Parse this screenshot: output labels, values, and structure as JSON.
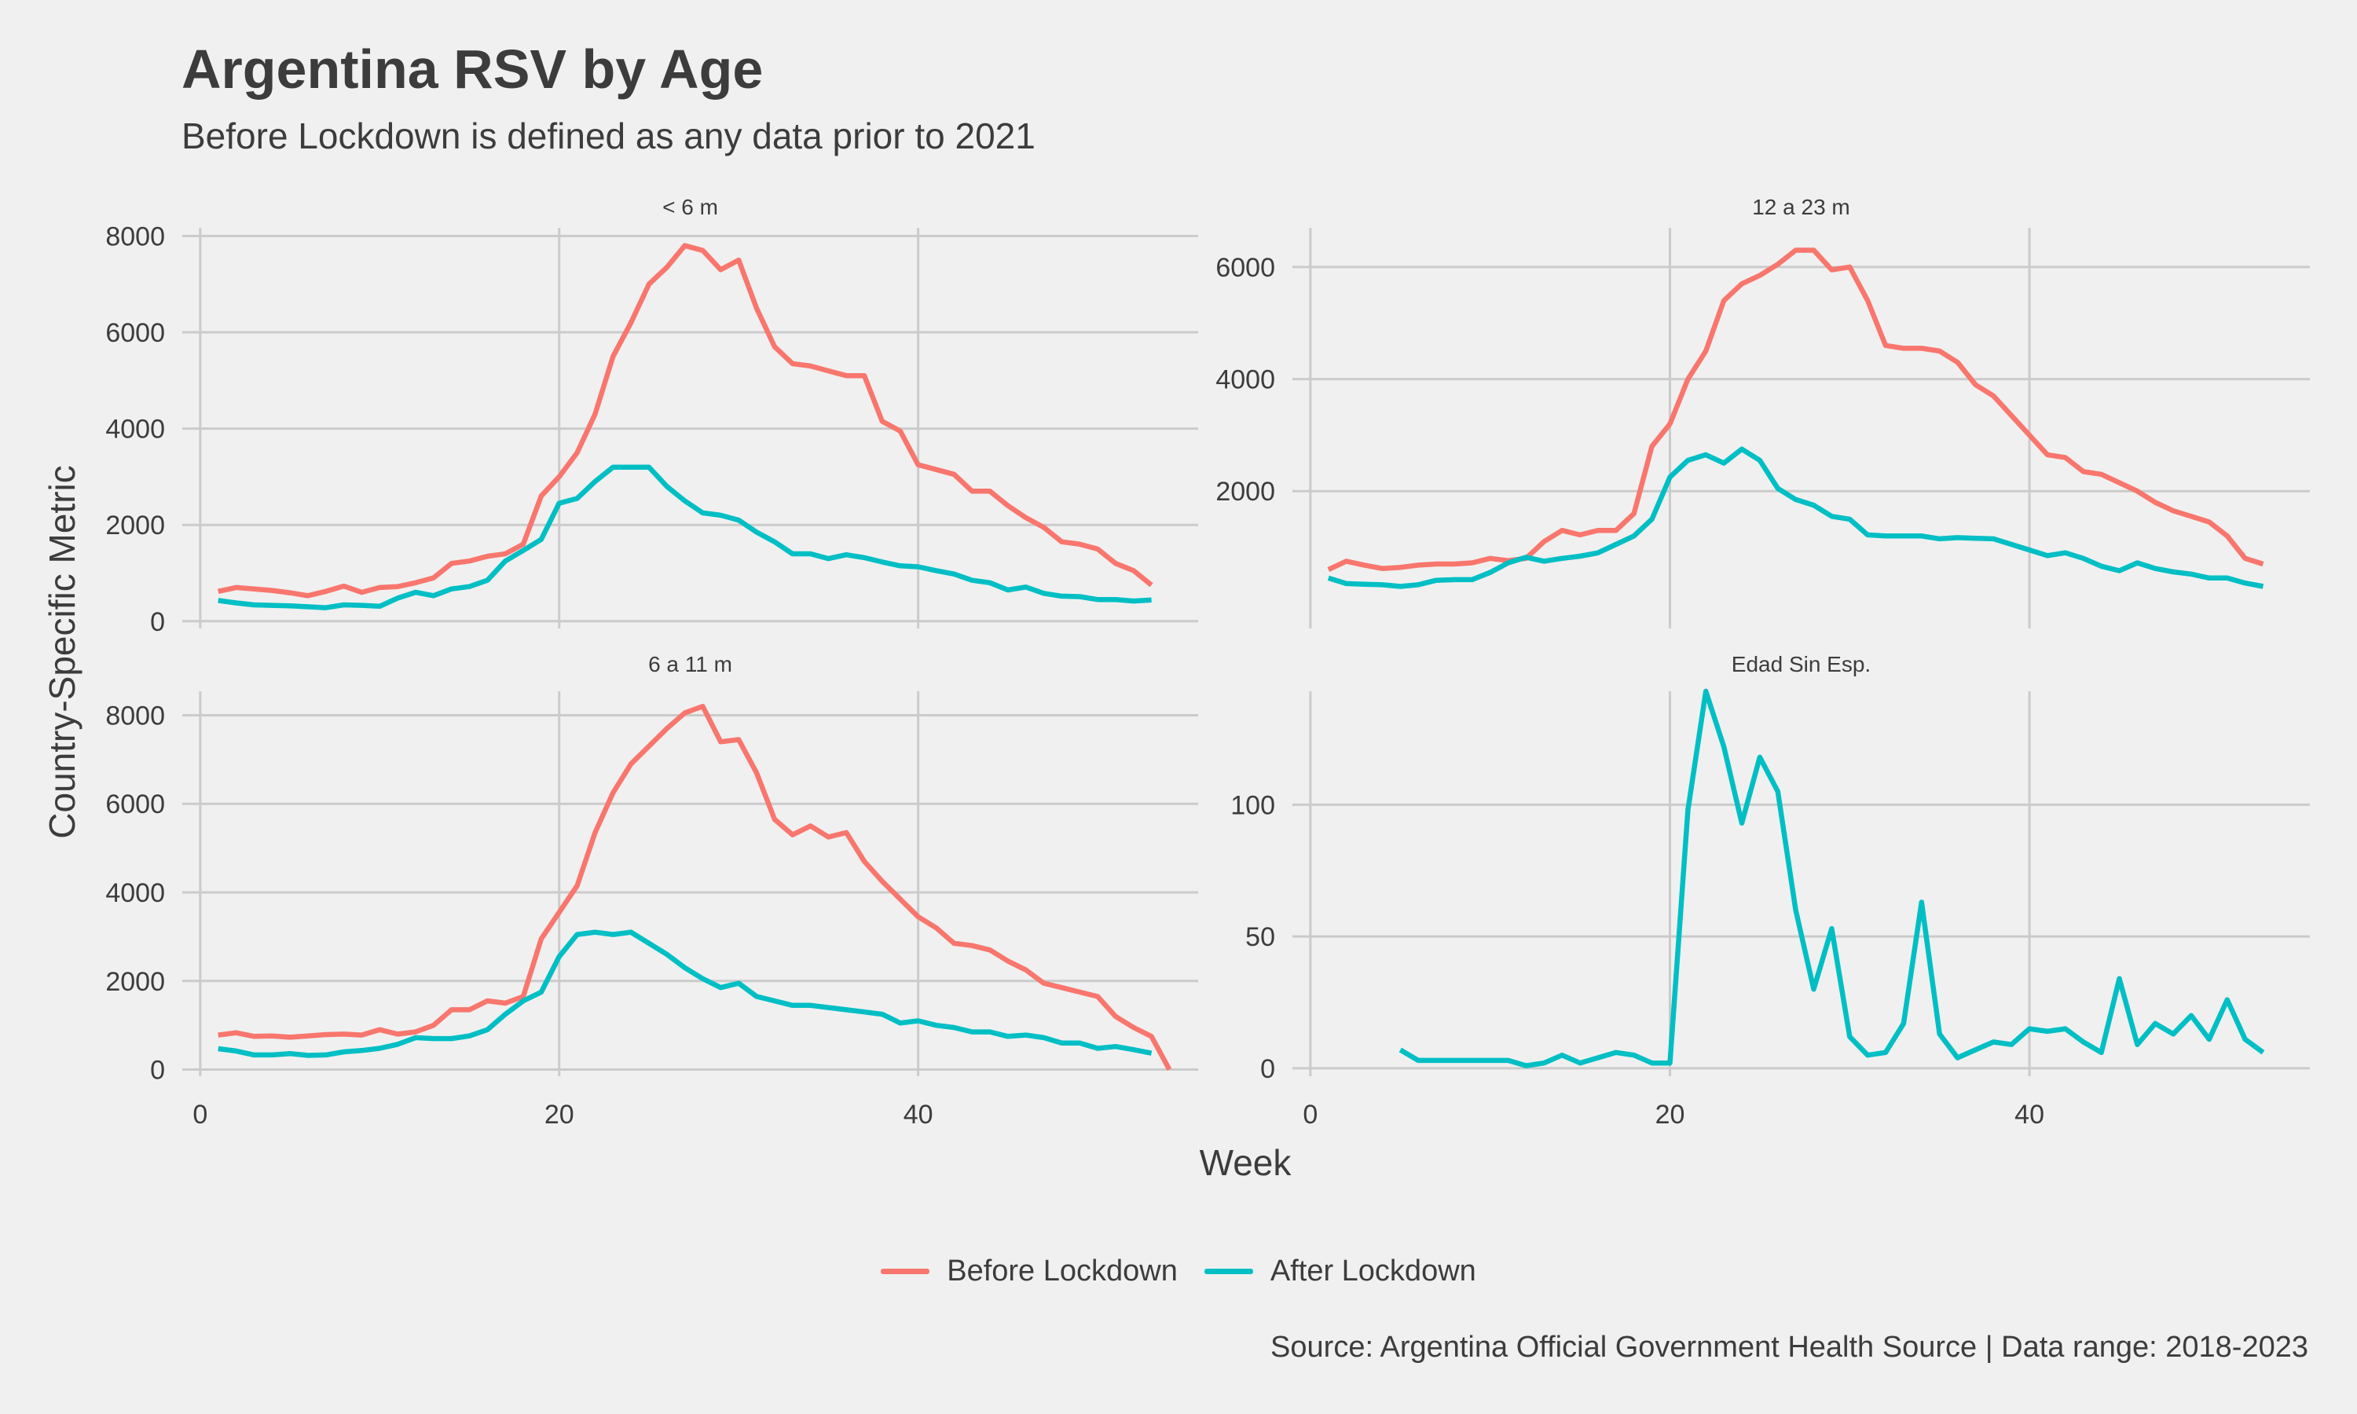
{
  "header": {
    "title": "Argentina RSV by Age",
    "subtitle": "Before Lockdown is defined as any data prior to 2021",
    "caption": "Source: Argentina Official Government Health Source | Data range: 2018-2023"
  },
  "colors": {
    "before": "#f8766d",
    "after": "#00bfc4",
    "grid": "#cbcbcb",
    "background": "#f0f0f0",
    "text": "#3c3c3c"
  },
  "legend": [
    {
      "label": "Before Lockdown",
      "color": "#f8766d"
    },
    {
      "label": "After Lockdown",
      "color": "#00bfc4"
    }
  ],
  "chart_data": {
    "type": "line",
    "xlabel": "Week",
    "ylabel": "Country-Specific Metric",
    "legend_position": "bottom",
    "grid": true,
    "x_ticks": [
      0,
      20,
      40
    ],
    "panels": [
      {
        "name": "< 6 m",
        "xlim": [
          -1,
          55.6
        ],
        "ylim": [
          -150,
          8170
        ],
        "y_ticks": [
          0,
          2000,
          4000,
          6000,
          8000
        ],
        "series": [
          {
            "name": "Before Lockdown",
            "x_start": 1,
            "values": [
              620,
              700,
              670,
              640,
              590,
              530,
              620,
              730,
              600,
              700,
              720,
              800,
              900,
              1200,
              1250,
              1350,
              1400,
              1600,
              2600,
              3000,
              3500,
              4300,
              5500,
              6200,
              7000,
              7350,
              7800,
              7700,
              7300,
              7500,
              6500,
              5700,
              5350,
              5300,
              5200,
              5100,
              5100,
              4150,
              3950,
              3250,
              3150,
              3050,
              2700,
              2700,
              2400,
              2150,
              1950,
              1650,
              1600,
              1500,
              1200,
              1050,
              750
            ]
          },
          {
            "name": "After Lockdown",
            "x_start": 1,
            "values": [
              430,
              380,
              340,
              330,
              320,
              300,
              280,
              340,
              330,
              310,
              480,
              600,
              530,
              670,
              720,
              850,
              1250,
              1470,
              1700,
              2450,
              2550,
              2900,
              3200,
              3200,
              3200,
              2800,
              2500,
              2250,
              2200,
              2100,
              1850,
              1650,
              1400,
              1400,
              1300,
              1380,
              1320,
              1230,
              1150,
              1130,
              1050,
              980,
              850,
              800,
              650,
              710,
              580,
              520,
              510,
              450,
              450,
              420,
              440
            ]
          }
        ]
      },
      {
        "name": "12 a 23 m",
        "xlim": [
          -1,
          55.6
        ],
        "ylim": [
          -450,
          6700
        ],
        "y_ticks": [
          2000,
          4000,
          6000
        ],
        "series": [
          {
            "name": "Before Lockdown",
            "x_start": 1,
            "values": [
              600,
              750,
              680,
              620,
              640,
              680,
              700,
              700,
              720,
              800,
              760,
              800,
              1100,
              1300,
              1220,
              1300,
              1300,
              1600,
              2800,
              3200,
              4000,
              4500,
              5400,
              5700,
              5850,
              6050,
              6300,
              6300,
              5950,
              6000,
              5400,
              4600,
              4550,
              4550,
              4500,
              4300,
              3900,
              3700,
              3350,
              3000,
              2650,
              2600,
              2350,
              2300,
              2150,
              2000,
              1800,
              1650,
              1550,
              1450,
              1200,
              800,
              700
            ]
          },
          {
            "name": "After Lockdown",
            "x_start": 1,
            "values": [
              450,
              350,
              340,
              330,
              300,
              330,
              410,
              420,
              420,
              550,
              720,
              820,
              750,
              800,
              840,
              900,
              1050,
              1200,
              1500,
              2250,
              2550,
              2650,
              2500,
              2750,
              2550,
              2050,
              1850,
              1750,
              1550,
              1500,
              1220,
              1200,
              1200,
              1200,
              1150,
              1170,
              1160,
              1150,
              1050,
              950,
              850,
              900,
              800,
              660,
              580,
              720,
              620,
              560,
              520,
              450,
              450,
              360,
              300
            ]
          }
        ]
      },
      {
        "name": "6 a 11 m",
        "xlim": [
          -1,
          55.6
        ],
        "ylim": [
          -150,
          8540
        ],
        "y_ticks": [
          0,
          2000,
          4000,
          6000,
          8000
        ],
        "series": [
          {
            "name": "Before Lockdown",
            "x_start": 1,
            "values": [
              780,
              830,
              750,
              760,
              730,
              760,
              790,
              800,
              780,
              900,
              800,
              850,
              1000,
              1350,
              1350,
              1550,
              1500,
              1650,
              2950,
              3550,
              4150,
              5350,
              6250,
              6900,
              7300,
              7700,
              8050,
              8200,
              7400,
              7450,
              6700,
              5650,
              5300,
              5500,
              5250,
              5350,
              4700,
              4250,
              3850,
              3450,
              3200,
              2850,
              2800,
              2700,
              2450,
              2250,
              1950,
              1850,
              1750,
              1650,
              1200,
              950,
              750,
              0
            ]
          },
          {
            "name": "After Lockdown",
            "x_start": 1,
            "values": [
              470,
              420,
              330,
              330,
              360,
              320,
              330,
              400,
              430,
              480,
              570,
              720,
              700,
              700,
              760,
              900,
              1250,
              1550,
              1750,
              2550,
              3050,
              3100,
              3050,
              3100,
              2850,
              2600,
              2300,
              2050,
              1850,
              1950,
              1650,
              1550,
              1450,
              1450,
              1400,
              1350,
              1300,
              1250,
              1050,
              1100,
              1000,
              950,
              850,
              850,
              750,
              780,
              720,
              600,
              600,
              480,
              520,
              450,
              370
            ]
          }
        ]
      },
      {
        "name": "Edad Sin Esp.",
        "xlim": [
          -1,
          55.6
        ],
        "ylim": [
          -3,
          143
        ],
        "y_ticks": [
          0,
          50,
          100
        ],
        "series": [
          {
            "name": "After Lockdown",
            "x_start": 5,
            "values": [
              7,
              3,
              3,
              3,
              3,
              3,
              3,
              1,
              2,
              5,
              2,
              4,
              6,
              5,
              2,
              2,
              98,
              143,
              122,
              93,
              118,
              105,
              60,
              30,
              53,
              12,
              5,
              6,
              17,
              63,
              13,
              4,
              7,
              10,
              9,
              15,
              14,
              15,
              10,
              6,
              34,
              9,
              17,
              13,
              20,
              11,
              26,
              11,
              6
            ]
          }
        ]
      }
    ]
  }
}
